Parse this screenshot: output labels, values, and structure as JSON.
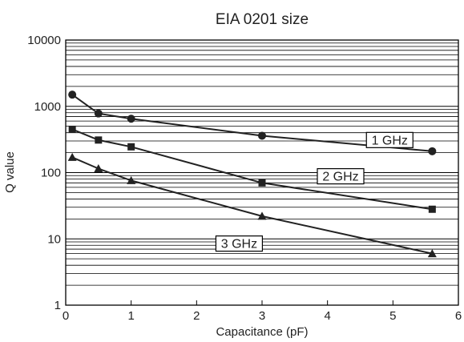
{
  "chart_data": {
    "type": "line",
    "title": "EIA 0201 size",
    "xlabel": "Capacitance (pF)",
    "ylabel": "Q value",
    "xlim": [
      0,
      6
    ],
    "ylim": [
      1,
      10000
    ],
    "yscale": "log",
    "grid": true,
    "x_ticks": [
      "0",
      "1",
      "2",
      "3",
      "4",
      "5",
      "6"
    ],
    "y_ticks": [
      "1",
      "10",
      "100",
      "1000",
      "10000"
    ],
    "series": [
      {
        "name": "1 GHz",
        "marker": "circle",
        "points": [
          [
            0.1,
            1500
          ],
          [
            0.5,
            780
          ],
          [
            1.0,
            650
          ],
          [
            3.0,
            360
          ],
          [
            5.6,
            210
          ]
        ]
      },
      {
        "name": "2 GHz",
        "marker": "square",
        "points": [
          [
            0.1,
            450
          ],
          [
            0.5,
            310
          ],
          [
            1.0,
            245
          ],
          [
            3.0,
            70
          ],
          [
            5.6,
            28
          ]
        ]
      },
      {
        "name": "3 GHz",
        "marker": "triangle",
        "points": [
          [
            0.1,
            170
          ],
          [
            0.5,
            115
          ],
          [
            1.0,
            76
          ],
          [
            3.0,
            22
          ],
          [
            5.6,
            6
          ]
        ]
      }
    ]
  }
}
